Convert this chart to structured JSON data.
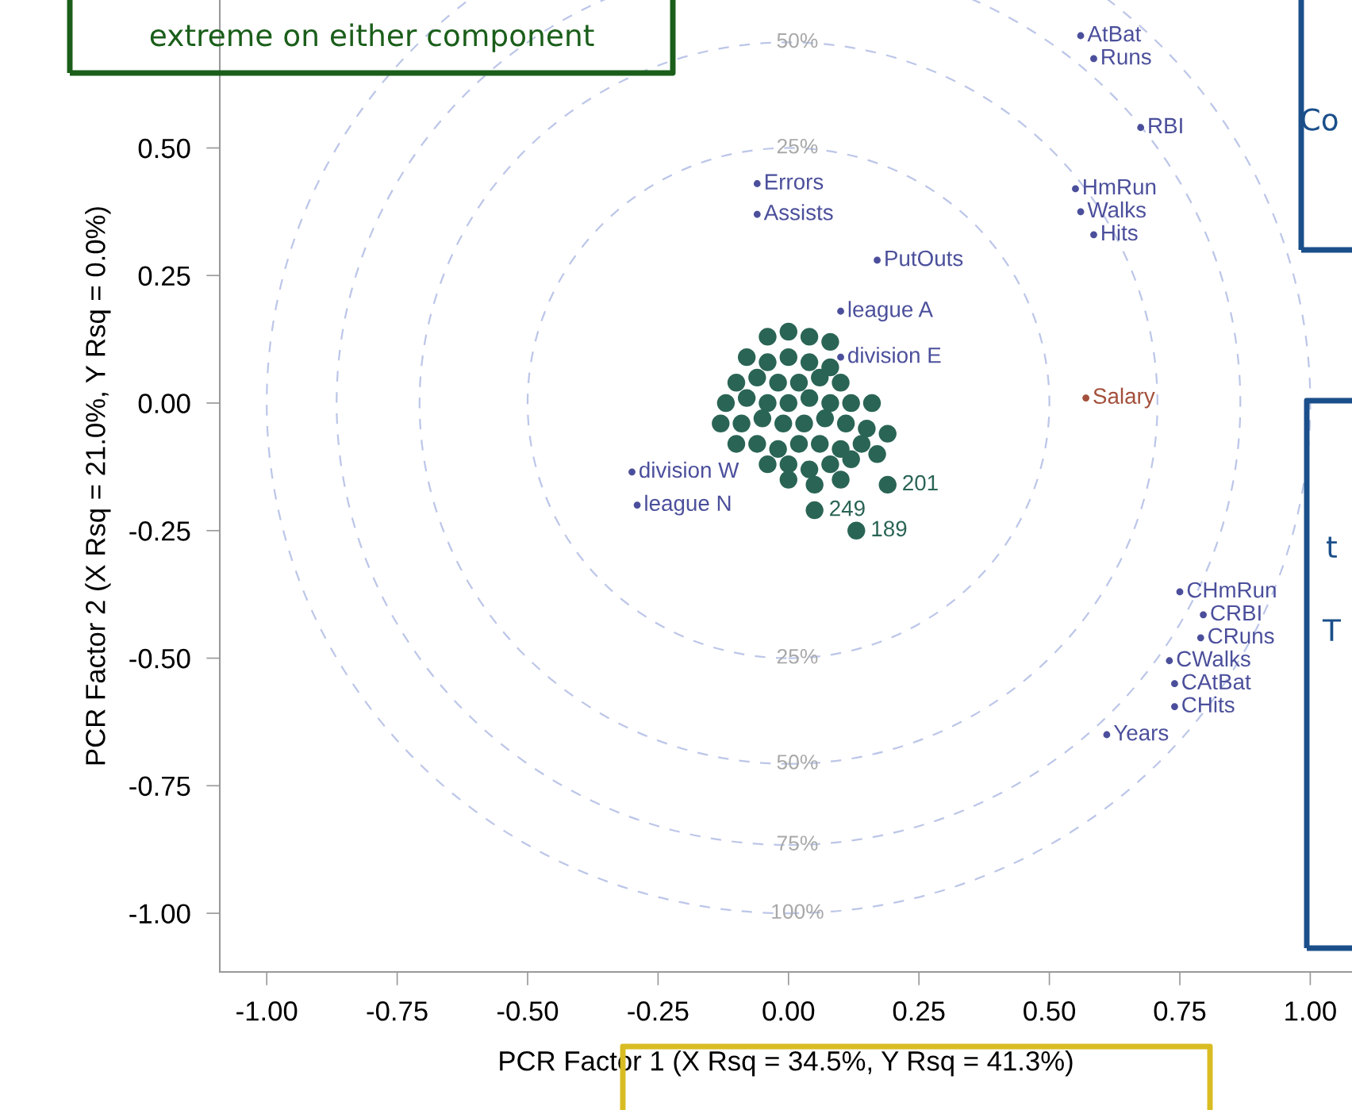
{
  "chart_data": {
    "type": "scatter",
    "xlabel": "PCR Factor 1 (X Rsq = 34.5%, Y Rsq = 41.3%)",
    "ylabel": "PCR Factor 2 (X Rsq = 21.0%, Y Rsq = 0.0%)",
    "xlim": [
      -1.09,
      1.08
    ],
    "ylim": [
      -1.115,
      0.79
    ],
    "xticks": [
      {
        "value": -1,
        "label": "-1.00"
      },
      {
        "value": -0.75,
        "label": "-0.75"
      },
      {
        "value": -0.5,
        "label": "-0.50"
      },
      {
        "value": -0.25,
        "label": "-0.25"
      },
      {
        "value": 0,
        "label": "0.00"
      },
      {
        "value": 0.25,
        "label": "0.25"
      },
      {
        "value": 0.5,
        "label": "0.50"
      },
      {
        "value": 0.75,
        "label": "0.75"
      },
      {
        "value": 1,
        "label": "1.00"
      }
    ],
    "yticks": [
      {
        "value": -1,
        "label": "-1.00"
      },
      {
        "value": -0.75,
        "label": "-0.75"
      },
      {
        "value": -0.5,
        "label": "-0.50"
      },
      {
        "value": -0.25,
        "label": "-0.25"
      },
      {
        "value": 0,
        "label": "0.00"
      },
      {
        "value": 0.25,
        "label": "0.25"
      },
      {
        "value": 0.5,
        "label": "0.50"
      }
    ],
    "grid": false,
    "legend": false,
    "series": [
      {
        "marker": "circle",
        "color": "#2a6455",
        "x": [
          -0.04,
          0.0,
          0.04,
          0.08,
          -0.08,
          -0.04,
          0.0,
          0.04,
          0.08,
          -0.1,
          -0.06,
          -0.02,
          0.02,
          0.06,
          0.1,
          -0.12,
          -0.08,
          -0.04,
          0.0,
          0.04,
          0.08,
          0.12,
          0.16,
          -0.13,
          -0.09,
          -0.05,
          -0.01,
          0.03,
          0.07,
          0.11,
          0.15,
          0.19,
          -0.1,
          -0.06,
          -0.02,
          0.02,
          0.06,
          0.1,
          0.14,
          0.17,
          -0.04,
          0.0,
          0.04,
          0.08,
          0.12,
          0.0,
          0.05,
          0.1,
          0.05,
          0.19,
          0.13
        ],
        "values": [
          0.13,
          0.14,
          0.13,
          0.12,
          0.09,
          0.08,
          0.09,
          0.08,
          0.07,
          0.04,
          0.05,
          0.04,
          0.04,
          0.05,
          0.04,
          0.0,
          0.01,
          0.0,
          0.0,
          0.01,
          0.0,
          0.0,
          0.0,
          -0.04,
          -0.04,
          -0.03,
          -0.04,
          -0.04,
          -0.03,
          -0.04,
          -0.05,
          -0.06,
          -0.08,
          -0.08,
          -0.09,
          -0.08,
          -0.08,
          -0.09,
          -0.08,
          -0.1,
          -0.12,
          -0.12,
          -0.13,
          -0.12,
          -0.11,
          -0.15,
          -0.16,
          -0.15,
          -0.21,
          -0.16,
          -0.25
        ]
      },
      {
        "name": "AtBat",
        "marker": "circle",
        "color": "#4b4f9b",
        "x": [
          0.56
        ],
        "values": [
          0.72
        ]
      },
      {
        "name": "Runs",
        "marker": "circle",
        "color": "#4b4f9b",
        "x": [
          0.585
        ],
        "values": [
          0.675
        ]
      },
      {
        "name": "RBI",
        "marker": "circle",
        "color": "#4b4f9b",
        "x": [
          0.675
        ],
        "values": [
          0.54
        ]
      },
      {
        "name": "HmRun",
        "marker": "circle",
        "color": "#4b4f9b",
        "x": [
          0.55
        ],
        "values": [
          0.42
        ]
      },
      {
        "name": "Walks",
        "marker": "circle",
        "color": "#4b4f9b",
        "x": [
          0.56
        ],
        "values": [
          0.375
        ]
      },
      {
        "name": "Hits",
        "marker": "circle",
        "color": "#4b4f9b",
        "x": [
          0.585
        ],
        "values": [
          0.33
        ]
      },
      {
        "name": "Errors",
        "marker": "circle",
        "color": "#4b4f9b",
        "x": [
          -0.06
        ],
        "values": [
          0.43
        ]
      },
      {
        "name": "Assists",
        "marker": "circle",
        "color": "#4b4f9b",
        "x": [
          -0.06
        ],
        "values": [
          0.37
        ]
      },
      {
        "name": "PutOuts",
        "marker": "circle",
        "color": "#4b4f9b",
        "x": [
          0.17
        ],
        "values": [
          0.28
        ]
      },
      {
        "name": "league A",
        "marker": "circle",
        "color": "#4b4f9b",
        "x": [
          0.1
        ],
        "values": [
          0.18
        ]
      },
      {
        "name": "division E",
        "marker": "circle",
        "color": "#4b4f9b",
        "x": [
          0.1
        ],
        "values": [
          0.09
        ]
      },
      {
        "name": "Salary",
        "marker": "circle",
        "color": "#a3503c",
        "x": [
          0.57
        ],
        "values": [
          0.01
        ]
      },
      {
        "name": "division W",
        "marker": "circle",
        "color": "#4b4f9b",
        "x": [
          -0.3
        ],
        "values": [
          -0.135
        ]
      },
      {
        "name": "league N",
        "marker": "circle",
        "color": "#4b4f9b",
        "x": [
          -0.29
        ],
        "values": [
          -0.2
        ]
      },
      {
        "name": "CHmRun",
        "marker": "circle",
        "color": "#4b4f9b",
        "x": [
          0.75
        ],
        "values": [
          -0.37
        ]
      },
      {
        "name": "CRBI",
        "marker": "circle",
        "color": "#4b4f9b",
        "x": [
          0.795
        ],
        "values": [
          -0.415
        ]
      },
      {
        "name": "CRuns",
        "marker": "circle",
        "color": "#4b4f9b",
        "x": [
          0.79
        ],
        "values": [
          -0.46
        ]
      },
      {
        "name": "CWalks",
        "marker": "circle",
        "color": "#4b4f9b",
        "x": [
          0.73
        ],
        "values": [
          -0.505
        ]
      },
      {
        "name": "CAtBat",
        "marker": "circle",
        "color": "#4b4f9b",
        "x": [
          0.74
        ],
        "values": [
          -0.55
        ]
      },
      {
        "name": "CHits",
        "marker": "circle",
        "color": "#4b4f9b",
        "x": [
          0.74
        ],
        "values": [
          -0.595
        ]
      },
      {
        "name": "Years",
        "marker": "circle",
        "color": "#4b4f9b",
        "x": [
          0.61
        ],
        "values": [
          -0.65
        ]
      }
    ],
    "annotations": [
      "extreme on either component",
      "Co",
      "t",
      "T",
      "50%",
      "25%",
      "25%",
      "50%",
      "75%",
      "100%",
      {
        "text": "249",
        "x": 0.05,
        "y": -0.21
      },
      {
        "text": "201",
        "x": 0.19,
        "y": -0.16
      },
      {
        "text": "189",
        "x": 0.13,
        "y": -0.25
      }
    ]
  }
}
